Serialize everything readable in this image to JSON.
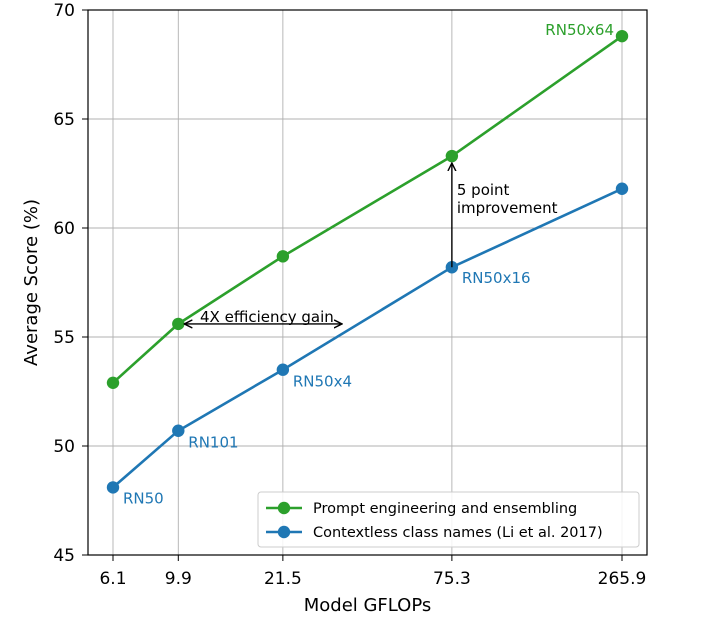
{
  "chart_data": {
    "type": "line",
    "title": "",
    "xlabel": "Model GFLOPs",
    "ylabel": "Average Score (%)",
    "x_scale": "categorical-log",
    "x_ticks": [
      6.1,
      9.9,
      21.5,
      75.3,
      265.9
    ],
    "x_tick_labels": [
      "6.1",
      "9.9",
      "21.5",
      "75.3",
      "265.9"
    ],
    "ylim": [
      45,
      70
    ],
    "y_ticks": [
      45,
      50,
      55,
      60,
      65,
      70
    ],
    "y_tick_labels": [
      "45",
      "50",
      "55",
      "60",
      "65",
      "70"
    ],
    "grid": true,
    "legend_position": "lower-right",
    "series": [
      {
        "name": "Prompt engineering and ensembling",
        "color": "#2ca02c",
        "x": [
          6.1,
          9.9,
          21.5,
          75.3,
          265.9
        ],
        "values": [
          52.9,
          55.6,
          58.7,
          63.3,
          68.8
        ]
      },
      {
        "name": "Contextless class names (Li et al. 2017)",
        "color": "#1f77b4",
        "x": [
          6.1,
          9.9,
          21.5,
          75.3,
          265.9
        ],
        "values": [
          48.1,
          50.7,
          53.5,
          58.2,
          61.8
        ]
      }
    ],
    "point_labels": [
      {
        "text": "RN50",
        "x": 6.1,
        "y": 48.1,
        "series": 1
      },
      {
        "text": "RN101",
        "x": 9.9,
        "y": 50.7,
        "series": 1
      },
      {
        "text": "RN50x4",
        "x": 21.5,
        "y": 53.5,
        "series": 1
      },
      {
        "text": "RN50x16",
        "x": 75.3,
        "y": 58.2,
        "series": 1
      },
      {
        "text": "RN50x64",
        "x": 265.9,
        "y": 68.8,
        "series": 0
      }
    ],
    "annotations": [
      {
        "name": "efficiency-gain",
        "text": "4X efficiency gain",
        "from": {
          "x": 9.9,
          "y": 55.6
        },
        "to_x_fraction_between_21_5_and_75_3": 0.35
      },
      {
        "name": "point-improvement",
        "text_lines": [
          "5 point",
          "improvement"
        ],
        "from": {
          "x": 75.3,
          "y": 58.2
        },
        "to": {
          "x": 75.3,
          "y": 63.3
        }
      }
    ]
  }
}
